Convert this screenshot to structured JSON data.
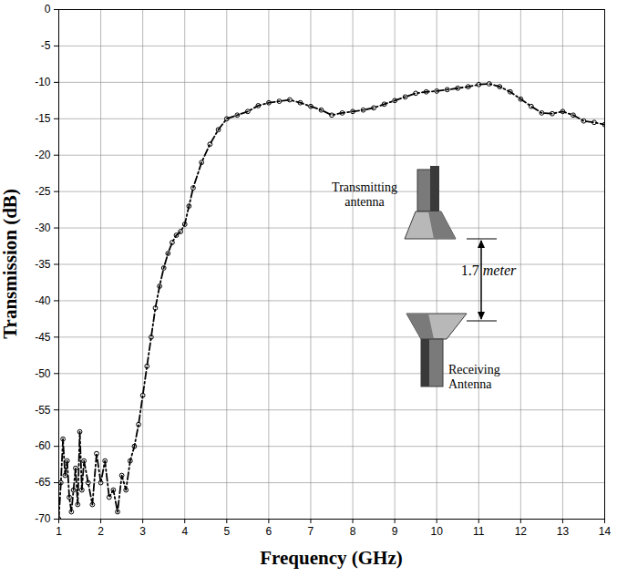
{
  "chart_data": {
    "type": "line",
    "x_label": "Frequency (GHz)",
    "y_label": "Transmission (dB)",
    "x": [
      1.0,
      1.05,
      1.1,
      1.15,
      1.2,
      1.25,
      1.3,
      1.35,
      1.4,
      1.45,
      1.5,
      1.55,
      1.6,
      1.7,
      1.8,
      1.9,
      2.0,
      2.1,
      2.2,
      2.3,
      2.4,
      2.5,
      2.6,
      2.7,
      2.8,
      2.9,
      3.0,
      3.1,
      3.2,
      3.3,
      3.4,
      3.5,
      3.6,
      3.7,
      3.8,
      3.9,
      4.0,
      4.1,
      4.2,
      4.4,
      4.6,
      4.8,
      5.0,
      5.25,
      5.5,
      5.75,
      6.0,
      6.25,
      6.5,
      6.75,
      7.0,
      7.25,
      7.5,
      7.75,
      8.0,
      8.25,
      8.5,
      8.75,
      9.0,
      9.25,
      9.5,
      9.75,
      10.0,
      10.25,
      10.5,
      10.75,
      11.0,
      11.25,
      11.5,
      11.75,
      12.0,
      12.25,
      12.5,
      12.75,
      13.0,
      13.25,
      13.5,
      13.75,
      14.0
    ],
    "values": [
      -70,
      -65,
      -59,
      -64,
      -62,
      -67,
      -69,
      -66,
      -63,
      -68,
      -58,
      -66,
      -62,
      -65,
      -68,
      -61,
      -65,
      -62,
      -67,
      -66,
      -69,
      -64,
      -66,
      -62,
      -60,
      -57,
      -53,
      -49,
      -45,
      -41,
      -38,
      -35.5,
      -33.5,
      -32,
      -31,
      -30.5,
      -29.5,
      -27,
      -24.5,
      -21,
      -18.5,
      -16.5,
      -15,
      -14.5,
      -14,
      -13.2,
      -12.8,
      -12.6,
      -12.4,
      -12.8,
      -13.3,
      -13.8,
      -14.5,
      -14.2,
      -14,
      -13.8,
      -13.5,
      -13,
      -12.5,
      -12,
      -11.5,
      -11.3,
      -11.2,
      -11,
      -10.8,
      -10.6,
      -10.3,
      -10.2,
      -10.6,
      -11.3,
      -12.3,
      -13.3,
      -14.2,
      -14.3,
      -14,
      -14.5,
      -15.3,
      -15.5,
      -15.8
    ],
    "color": "#000000",
    "marker": "circle",
    "line_style": "dashdot",
    "xlim": [
      1,
      14
    ],
    "ylim": [
      -70,
      0
    ],
    "xticks": [
      1,
      2,
      3,
      4,
      5,
      6,
      7,
      8,
      9,
      10,
      11,
      12,
      13,
      14
    ],
    "yticks": [
      -70,
      -65,
      -60,
      -55,
      -50,
      -45,
      -40,
      -35,
      -30,
      -25,
      -20,
      -15,
      -10,
      -5,
      0
    ],
    "grid": true,
    "annotations": [
      "Transmitting antenna",
      "1.7 meter",
      "Receiving Antenna"
    ]
  }
}
